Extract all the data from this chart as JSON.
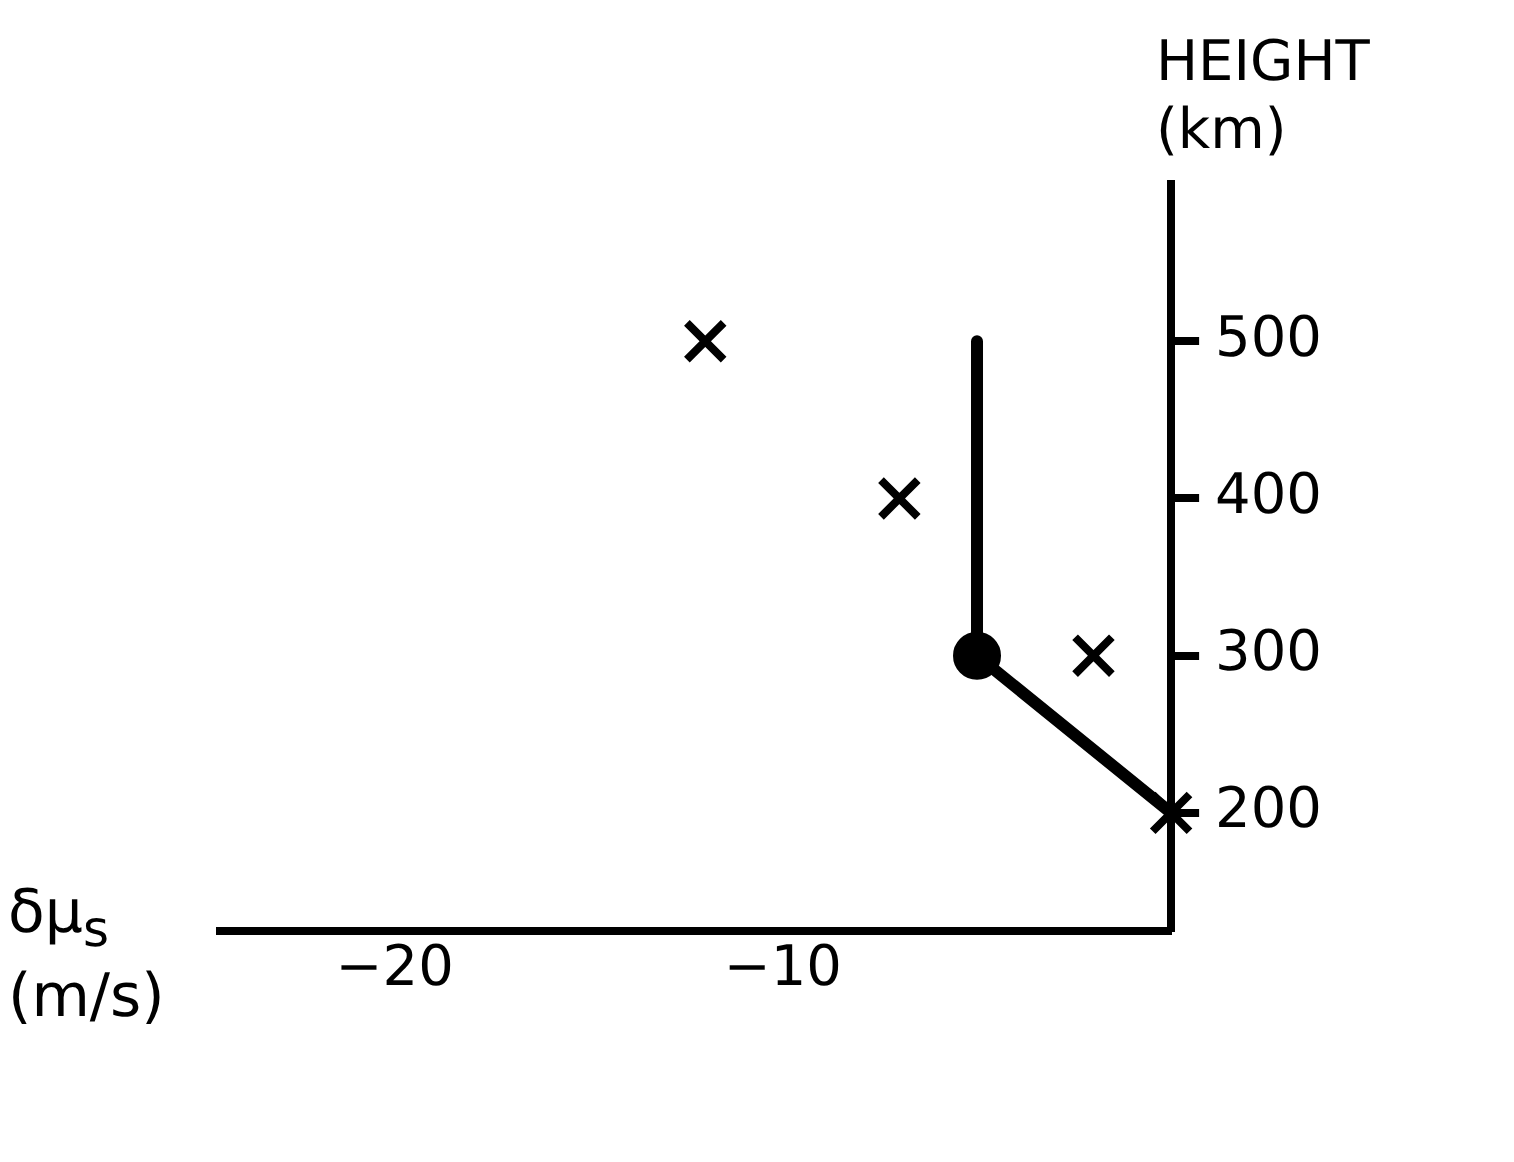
{
  "chart_data": {
    "type": "line",
    "xlabel": "δμ$_{s}$ (m/s)",
    "ylabel": "HEIGHT (km)",
    "xlim": [
      -24.5,
      0
    ],
    "xticks": [
      -20,
      -10
    ],
    "ylim": [
      125,
      600
    ],
    "yticks": [
      200,
      300,
      400,
      500
    ],
    "grid": false,
    "legend": false,
    "series": [
      {
        "color": "#000000",
        "marker": "none",
        "line_style": "solid",
        "x": [
          -5,
          -5,
          0
        ],
        "values": [
          500,
          300,
          200
        ]
      },
      {
        "type": "scatter",
        "color": "#000000",
        "marker": "circle",
        "x": [
          -5
        ],
        "values": [
          300
        ]
      },
      {
        "type": "scatter",
        "color": "#000000",
        "marker": "cross",
        "x": [
          -12,
          -7,
          -2,
          0
        ],
        "values": [
          500,
          400,
          300,
          200
        ]
      }
    ]
  }
}
